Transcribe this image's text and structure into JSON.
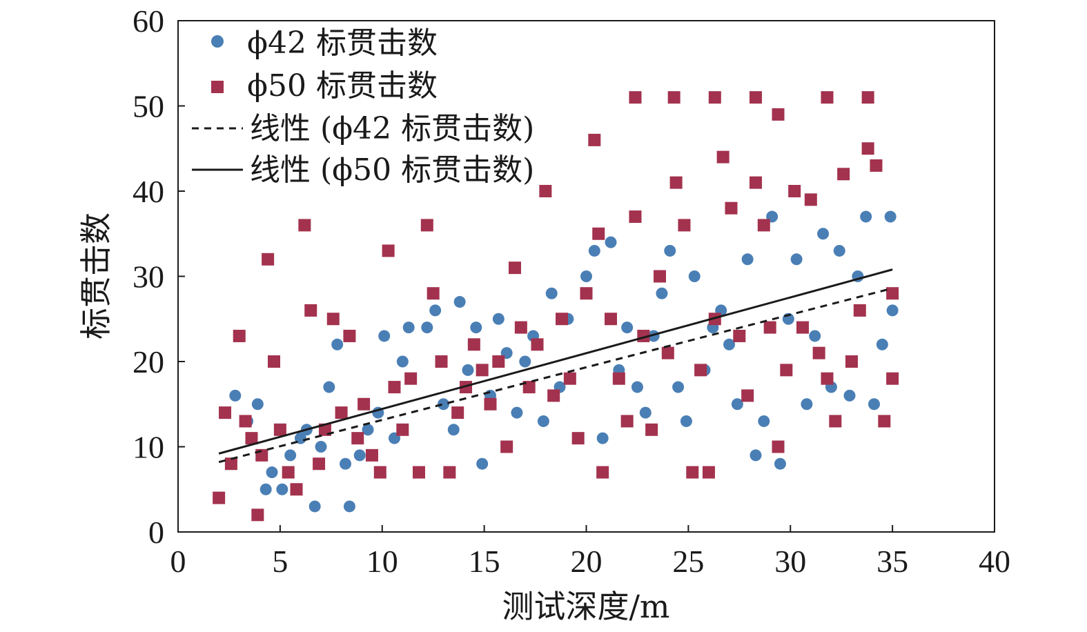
{
  "chart_data": {
    "type": "scatter",
    "xlabel": "测试深度/m",
    "ylabel": "标贯击数",
    "xlim": [
      0,
      40
    ],
    "ylim": [
      0,
      60
    ],
    "xticks": [
      0,
      5,
      10,
      15,
      20,
      25,
      30,
      35,
      40
    ],
    "yticks": [
      0,
      10,
      20,
      30,
      40,
      50,
      60
    ],
    "grid": false,
    "legend_position": "top-left",
    "series": [
      {
        "name": "ϕ42 标贯击数",
        "kind": "scatter",
        "marker": "circle",
        "color": "#4a7fb5",
        "x": [
          2.8,
          3.4,
          3.9,
          4.3,
          4.6,
          5.1,
          5.5,
          6.0,
          6.3,
          6.7,
          7.0,
          7.4,
          7.8,
          8.2,
          8.4,
          8.9,
          9.3,
          9.8,
          10.1,
          10.6,
          11.0,
          11.3,
          11.8,
          12.2,
          12.6,
          13.0,
          13.5,
          13.8,
          14.2,
          14.6,
          14.9,
          15.3,
          15.7,
          16.1,
          16.6,
          17.0,
          17.4,
          17.9,
          18.3,
          18.7,
          19.1,
          19.6,
          20.0,
          20.4,
          20.8,
          21.2,
          21.6,
          22.0,
          22.5,
          22.9,
          23.3,
          23.7,
          24.1,
          24.5,
          24.9,
          25.3,
          25.8,
          26.2,
          26.6,
          27.0,
          27.4,
          27.9,
          28.3,
          28.7,
          29.1,
          29.5,
          29.9,
          30.3,
          30.8,
          31.2,
          31.6,
          32.0,
          32.4,
          32.9,
          33.3,
          33.7,
          34.1,
          34.5,
          34.9,
          35.0
        ],
        "y": [
          16,
          13,
          15,
          5,
          7,
          5,
          9,
          11,
          12,
          3,
          10,
          17,
          22,
          8,
          3,
          9,
          12,
          14,
          23,
          11,
          20,
          24,
          7,
          24,
          26,
          15,
          12,
          27,
          19,
          24,
          8,
          16,
          25,
          21,
          14,
          20,
          23,
          13,
          28,
          17,
          25,
          11,
          30,
          33,
          11,
          34,
          19,
          24,
          17,
          14,
          23,
          28,
          33,
          17,
          13,
          30,
          19,
          24,
          26,
          22,
          15,
          32,
          9,
          13,
          37,
          8,
          25,
          32,
          15,
          23,
          35,
          17,
          33,
          16,
          30,
          37,
          15,
          22,
          37,
          26
        ]
      },
      {
        "name": "ϕ50 标贯击数",
        "kind": "scatter",
        "marker": "square",
        "color": "#a3324e",
        "x": [
          2.0,
          2.3,
          2.6,
          3.0,
          3.3,
          3.6,
          3.9,
          4.1,
          4.4,
          4.7,
          5.0,
          5.4,
          5.8,
          6.2,
          6.5,
          6.9,
          7.2,
          7.6,
          8.0,
          8.4,
          8.8,
          9.1,
          9.5,
          9.9,
          10.3,
          10.6,
          11.0,
          11.4,
          11.8,
          12.2,
          12.5,
          12.9,
          13.3,
          13.7,
          14.1,
          14.5,
          14.9,
          15.3,
          15.7,
          16.1,
          16.5,
          16.8,
          17.2,
          17.6,
          18.0,
          18.4,
          18.8,
          19.2,
          19.6,
          20.0,
          20.4,
          20.6,
          20.8,
          21.2,
          21.6,
          22.0,
          22.4,
          22.8,
          23.2,
          23.6,
          24.0,
          24.4,
          24.8,
          25.2,
          25.6,
          26.0,
          26.3,
          26.7,
          27.1,
          27.5,
          27.9,
          28.3,
          28.7,
          29.0,
          29.4,
          29.8,
          30.2,
          30.6,
          31.0,
          31.4,
          31.8,
          32.2,
          32.6,
          33.0,
          33.4,
          33.8,
          34.2,
          34.6,
          35.0,
          22.4,
          24.3,
          26.3,
          28.3,
          31.8,
          33.8,
          29.4,
          35.0
        ],
        "y": [
          4,
          14,
          8,
          23,
          13,
          11,
          2,
          9,
          32,
          20,
          12,
          7,
          5,
          36,
          26,
          8,
          12,
          25,
          14,
          23,
          11,
          15,
          9,
          7,
          33,
          17,
          12,
          18,
          7,
          36,
          28,
          20,
          7,
          14,
          17,
          22,
          19,
          15,
          20,
          10,
          31,
          24,
          17,
          22,
          40,
          16,
          25,
          18,
          11,
          28,
          46,
          35,
          7,
          25,
          18,
          13,
          37,
          23,
          12,
          30,
          21,
          41,
          36,
          7,
          19,
          7,
          25,
          44,
          38,
          23,
          16,
          41,
          36,
          24,
          49,
          19,
          40,
          24,
          39,
          21,
          18,
          13,
          42,
          20,
          26,
          45,
          43,
          13,
          18,
          51,
          51,
          51,
          51,
          51,
          51,
          10,
          28
        ]
      },
      {
        "name": "线性 (ϕ42 标贯击数)",
        "kind": "trendline",
        "dash": "dashed",
        "color": "#1a1a1a",
        "x": [
          2,
          35
        ],
        "y": [
          8.2,
          28.6
        ]
      },
      {
        "name": "线性 (ϕ50 标贯击数)",
        "kind": "trendline",
        "dash": "solid",
        "color": "#1a1a1a",
        "x": [
          2,
          35
        ],
        "y": [
          9.2,
          30.8
        ]
      }
    ]
  }
}
